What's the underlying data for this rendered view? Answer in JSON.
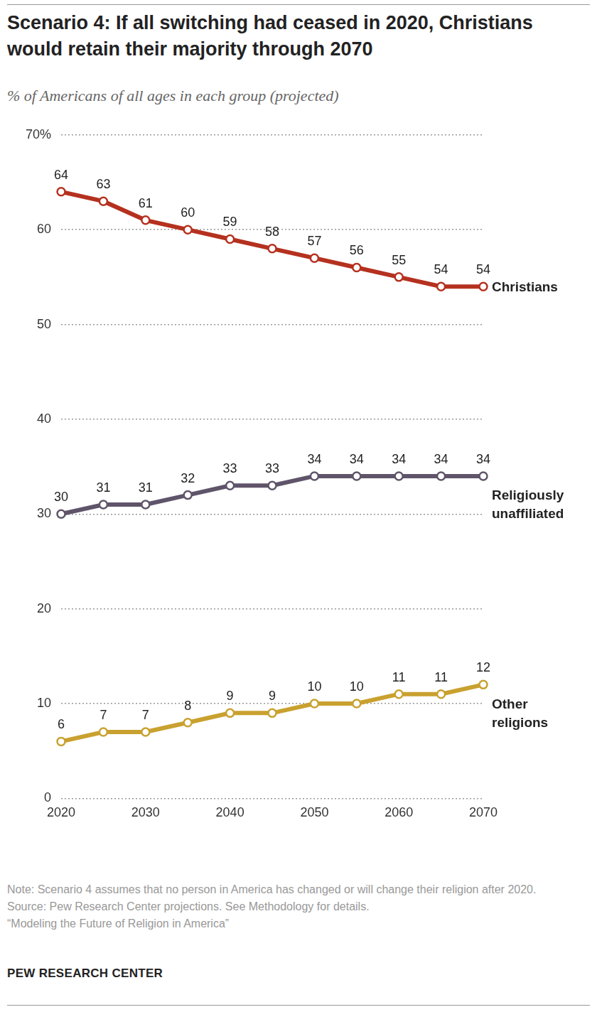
{
  "chart_data": {
    "type": "line",
    "title": "Scenario 4: If all switching had ceased in 2020, Christians would retain their majority through 2070",
    "subtitle": "% of Americans of all ages in each group (projected)",
    "x": [
      2020,
      2025,
      2030,
      2035,
      2040,
      2045,
      2050,
      2055,
      2060,
      2065,
      2070
    ],
    "series": [
      {
        "name": "Christians",
        "color": "#b5311f",
        "values": [
          64,
          63,
          61,
          60,
          59,
          58,
          57,
          56,
          55,
          54,
          54
        ]
      },
      {
        "name": "Religiously unaffiliated",
        "color": "#5f5469",
        "values": [
          30,
          31,
          31,
          32,
          33,
          33,
          34,
          34,
          34,
          34,
          34
        ]
      },
      {
        "name": "Other religions",
        "color": "#c9a12f",
        "values": [
          6,
          7,
          7,
          8,
          9,
          9,
          10,
          10,
          11,
          11,
          12
        ]
      }
    ],
    "xlim": [
      2020,
      2070
    ],
    "xticks": [
      2020,
      2030,
      2040,
      2050,
      2060,
      2070
    ],
    "ylim": [
      0,
      70
    ],
    "yticks": [
      0,
      10,
      20,
      30,
      40,
      50,
      60,
      {
        "value": 70,
        "label": "70%"
      }
    ],
    "grid": true,
    "data_labels": true,
    "marker": "circle",
    "notes": [
      "Note: Scenario 4 assumes that no person in America has changed or will change their religion after 2020.",
      "Source: Pew Research Center projections. See Methodology for details.",
      "“Modeling the Future of Religion in America”"
    ],
    "credit": "PEW RESEARCH CENTER"
  }
}
